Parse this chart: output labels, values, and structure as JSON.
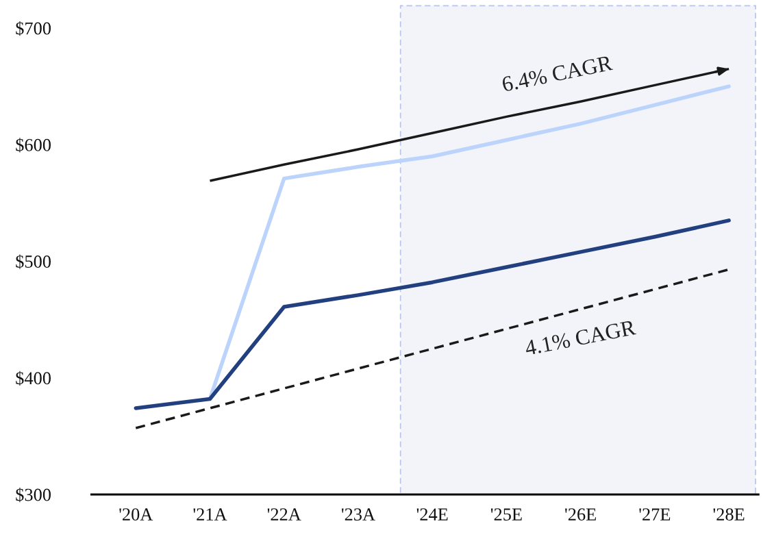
{
  "chart_data": {
    "type": "line",
    "categories": [
      "'20A",
      "'21A",
      "'22A",
      "'23A",
      "'24E",
      "'25E",
      "'26E",
      "'27E",
      "'28E"
    ],
    "series": [
      {
        "color": "#bcd4fb",
        "values": [
          null,
          382,
          571,
          581,
          590,
          604,
          618,
          634,
          650
        ]
      },
      {
        "color": "#22407f",
        "values": [
          374,
          382,
          461,
          471,
          482,
          495,
          508,
          521,
          535
        ]
      },
      {
        "type": "line",
        "color": "#1a1a1a",
        "values": [
          null,
          569,
          583,
          596,
          610,
          624,
          637,
          651,
          665
        ],
        "line_style": "solid"
      },
      {
        "type": "line",
        "color": "#1a1a1a",
        "values": [
          357,
          374,
          391,
          408,
          425,
          442,
          459,
          476,
          493
        ],
        "line_style": "dashed"
      }
    ],
    "ylim": [
      300,
      700
    ],
    "yticks": [
      {
        "value": 300,
        "label": "$300"
      },
      {
        "value": 400,
        "label": "$400"
      },
      {
        "value": 500,
        "label": "$500"
      },
      {
        "value": 600,
        "label": "$600"
      },
      {
        "value": 700,
        "label": "$700"
      }
    ],
    "annotations": [
      "6.4% CAGR",
      "4.1% CAGR"
    ],
    "grid": false,
    "legend": false,
    "marker": "none",
    "line_style": "solid"
  }
}
